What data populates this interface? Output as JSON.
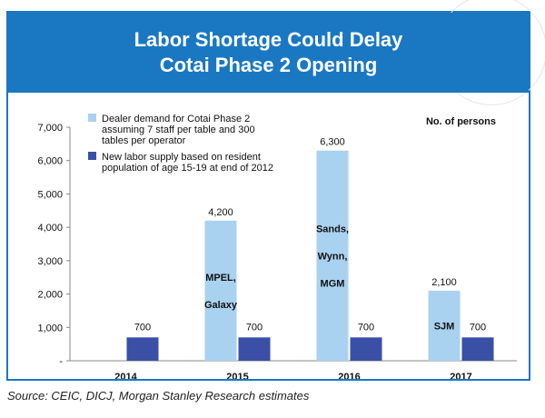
{
  "header": {
    "title_line1": "Labor Shortage Could Delay",
    "title_line2": "Cotai Phase 2 Opening"
  },
  "source": "Source: CEIC, DICJ, Morgan Stanley Research estimates",
  "colors": {
    "frame": "#1a78c2",
    "demand": "#a9d2f0",
    "supply": "#3a4fa6"
  },
  "chart_data": {
    "type": "bar",
    "categories": [
      "2014",
      "2015",
      "2016",
      "2017"
    ],
    "series": [
      {
        "name": "Dealer demand for Cotai Phase 2 assuming 7 staff per table and 300 tables per operator",
        "name_lines": [
          "Dealer demand for Cotai Phase 2",
          "assuming 7 staff per table and 300",
          "tables per operator"
        ],
        "values": [
          null,
          4200,
          6300,
          2100
        ],
        "data_labels": [
          "",
          "4,200",
          "6,300",
          "2,100"
        ]
      },
      {
        "name": "New labor supply based on resident population of age 15-19 at end of 2012",
        "name_lines": [
          "New labor supply based on resident",
          "population of age 15-19 at end of 2012"
        ],
        "values": [
          700,
          700,
          700,
          700
        ],
        "data_labels": [
          "700",
          "700",
          "700",
          "700"
        ]
      }
    ],
    "operator_labels": [
      [],
      [
        "MPEL,",
        "Galaxy"
      ],
      [
        "Sands,",
        "Wynn,",
        "MGM"
      ],
      [
        "SJM"
      ]
    ],
    "yticks": [
      "-",
      "1,000",
      "2,000",
      "3,000",
      "4,000",
      "5,000",
      "6,000",
      "7,000"
    ],
    "ylim": [
      0,
      7000
    ],
    "unit_note": "No. of persons",
    "legend_position": "top-left",
    "grid": false
  }
}
